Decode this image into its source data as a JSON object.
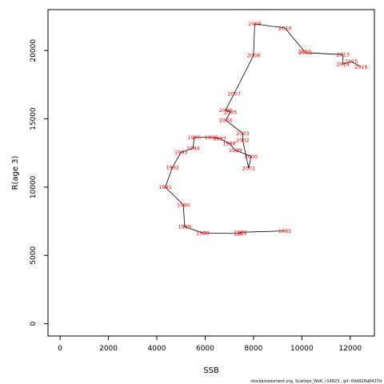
{
  "chart_data": {
    "type": "line",
    "xlabel": "SSB",
    "ylabel": "R(age 3)",
    "xlim": [
      -500,
      13000
    ],
    "ylim": [
      -900,
      23000
    ],
    "xticks": [
      0,
      2000,
      4000,
      6000,
      8000,
      10000,
      12000
    ],
    "yticks": [
      0,
      5000,
      10000,
      15000,
      20000
    ],
    "grid": false,
    "line_color": "#000000",
    "label_color": "#ff0000",
    "points": [
      {
        "year": "1985",
        "x": 9300,
        "y": 6800
      },
      {
        "year": "1986",
        "x": 7450,
        "y": 6700
      },
      {
        "year": "1987",
        "x": 7450,
        "y": 6600
      },
      {
        "year": "1988",
        "x": 5900,
        "y": 6650
      },
      {
        "year": "1989",
        "x": 5150,
        "y": 7100
      },
      {
        "year": "1990",
        "x": 5100,
        "y": 8700
      },
      {
        "year": "1991",
        "x": 4350,
        "y": 10000
      },
      {
        "year": "1992",
        "x": 4650,
        "y": 11450
      },
      {
        "year": "1993",
        "x": 5000,
        "y": 12550
      },
      {
        "year": "1994",
        "x": 5500,
        "y": 12850
      },
      {
        "year": "1995",
        "x": 5550,
        "y": 13650
      },
      {
        "year": "1996",
        "x": 6250,
        "y": 13650
      },
      {
        "year": "1997",
        "x": 6600,
        "y": 13550
      },
      {
        "year": "1998",
        "x": 7000,
        "y": 13200
      },
      {
        "year": "1999",
        "x": 7250,
        "y": 12700
      },
      {
        "year": "2000",
        "x": 7900,
        "y": 12250
      },
      {
        "year": "2001",
        "x": 7800,
        "y": 11400
      },
      {
        "year": "2002",
        "x": 7550,
        "y": 13450
      },
      {
        "year": "2003",
        "x": 7550,
        "y": 13950
      },
      {
        "year": "2004",
        "x": 6850,
        "y": 14900
      },
      {
        "year": "2005",
        "x": 7050,
        "y": 15500
      },
      {
        "year": "2006",
        "x": 6850,
        "y": 15650
      },
      {
        "year": "2007",
        "x": 7200,
        "y": 16850
      },
      {
        "year": "2008",
        "x": 8000,
        "y": 19650
      },
      {
        "year": "2009",
        "x": 8050,
        "y": 21950
      },
      {
        "year": "2010",
        "x": 9300,
        "y": 21650
      },
      {
        "year": "2011",
        "x": 10100,
        "y": 19950
      },
      {
        "year": "2012",
        "x": 10150,
        "y": 19850
      },
      {
        "year": "2013",
        "x": 11700,
        "y": 19700
      },
      {
        "year": "2014",
        "x": 11700,
        "y": 19000
      },
      {
        "year": "2015",
        "x": 12050,
        "y": 19200
      },
      {
        "year": "2016",
        "x": 12450,
        "y": 18800
      }
    ]
  },
  "footer": "stockassessment.org, Scallops_WoK, r14823 , git: 69d926d0437d"
}
